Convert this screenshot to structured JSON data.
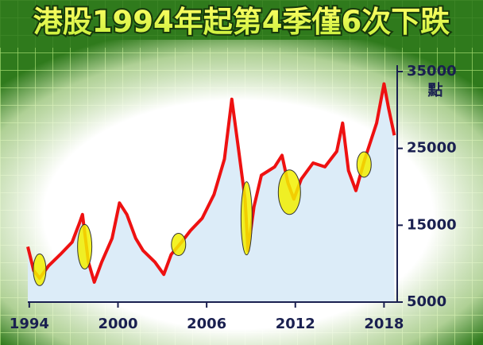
{
  "chart_data": {
    "type": "line",
    "title": "港股1994年起第4季僅6次下跌",
    "y_label": "點",
    "x": [
      1993.9,
      1994.3,
      1994.7,
      1995.3,
      1996.1,
      1996.9,
      1997.4,
      1997.6,
      1998.0,
      1998.4,
      1998.9,
      1999.6,
      2000.1,
      2000.6,
      2001.2,
      2001.7,
      2002.5,
      2003.1,
      2003.6,
      2004.3,
      2004.9,
      2005.7,
      2006.5,
      2007.2,
      2007.7,
      2008.1,
      2008.6,
      2008.8,
      2009.2,
      2009.7,
      2010.6,
      2011.1,
      2011.5,
      2011.9,
      2012.4,
      2013.2,
      2014.0,
      2014.8,
      2015.2,
      2015.6,
      2016.1,
      2016.7,
      2017.5,
      2018.0,
      2018.3,
      2018.7
    ],
    "series": [
      {
        "color": "#ee1111",
        "values": [
          12200,
          9100,
          8100,
          9700,
          11200,
          12800,
          15300,
          16400,
          10200,
          7600,
          10200,
          13300,
          17900,
          16400,
          13300,
          11700,
          10200,
          8600,
          11200,
          12800,
          14300,
          15900,
          19000,
          23600,
          31400,
          25700,
          18400,
          11700,
          17400,
          21500,
          22600,
          24100,
          20500,
          18400,
          21000,
          23100,
          22600,
          24600,
          28300,
          22100,
          19500,
          23600,
          28300,
          33400,
          30300,
          26700
        ]
      }
    ],
    "highlights": [
      {
        "x": 1994.7,
        "y": 9200
      },
      {
        "x": 1997.75,
        "y": 12200
      },
      {
        "x": 2004.1,
        "y": 12500
      },
      {
        "x": 2008.7,
        "y": 15900
      },
      {
        "x": 2011.6,
        "y": 19300
      },
      {
        "x": 2016.65,
        "y": 22900
      }
    ],
    "highlight_color": "#f2f000",
    "area_color": "#dcecf8",
    "xlim": [
      1993.9,
      2019.0
    ],
    "xticks": [
      1994,
      2000,
      2006,
      2012,
      2018
    ],
    "ylim": [
      5000,
      35000
    ],
    "yticks": [
      5000,
      15000,
      25000,
      35000
    ],
    "y_axis_side": "right"
  }
}
